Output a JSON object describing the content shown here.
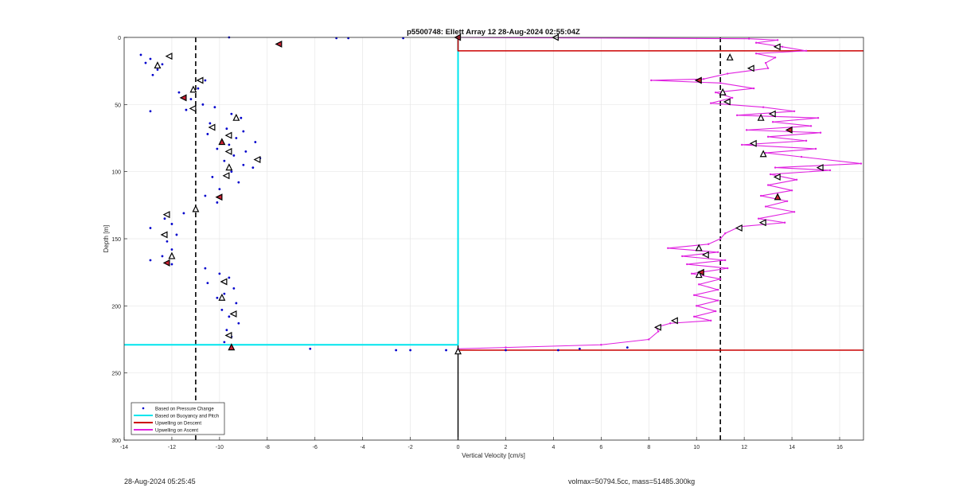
{
  "footer": {
    "timestamp": "28-Aug-2024 05:25:45",
    "mass_info": "volmax=50794.5cc, mass=51485.300kg"
  },
  "chart_data": {
    "type": "scatter",
    "title": "p5500748: Ellett Array 12 28-Aug-2024 02:55:04Z",
    "xlabel": "Vertical Velocity [cm/s]",
    "ylabel": "Depth [m]",
    "xlim": [
      -14,
      17
    ],
    "ylim": [
      0,
      300
    ],
    "y_reversed": true,
    "grid": true,
    "x_ticks": [
      -14,
      -12,
      -10,
      -8,
      -6,
      -4,
      -2,
      0,
      2,
      4,
      6,
      8,
      10,
      12,
      14,
      16
    ],
    "y_ticks": [
      0,
      50,
      100,
      150,
      200,
      250,
      300
    ],
    "reference_lines_x": [
      -11,
      11
    ],
    "legend_position": "bottom-left",
    "colors": {
      "pressure": "#0000cc",
      "buoyancy": "#00e5ee",
      "descent": "#cc0000",
      "ascent": "#e020e0",
      "reference": "#000000",
      "axis": "#262626",
      "grid": "#e6e6e6"
    },
    "series": [
      {
        "name": "Based on Pressure Change",
        "kind": "scatter",
        "points": [
          [
            -9.6,
            0
          ],
          [
            -7.5,
            5
          ],
          [
            -5.1,
            0.5
          ],
          [
            -4.6,
            0.5
          ],
          [
            -2.3,
            0.5
          ],
          [
            -13.3,
            13
          ],
          [
            -12.9,
            16
          ],
          [
            -12.4,
            20
          ],
          [
            -12.1,
            14
          ],
          [
            -12.6,
            24
          ],
          [
            -13.1,
            19
          ],
          [
            -12.8,
            28
          ],
          [
            -10.6,
            32
          ],
          [
            -10.9,
            38
          ],
          [
            -11.7,
            41
          ],
          [
            -11.2,
            46
          ],
          [
            -10.7,
            50
          ],
          [
            -11.4,
            54
          ],
          [
            -12.9,
            55
          ],
          [
            -10.2,
            52
          ],
          [
            -9.5,
            57
          ],
          [
            -9.1,
            60
          ],
          [
            -10.4,
            64
          ],
          [
            -9.7,
            68
          ],
          [
            -9.0,
            70
          ],
          [
            -10.5,
            72
          ],
          [
            -9.3,
            75
          ],
          [
            -8.5,
            78
          ],
          [
            -9.6,
            80
          ],
          [
            -10.1,
            83
          ],
          [
            -8.9,
            85
          ],
          [
            -9.4,
            88
          ],
          [
            -8.3,
            90
          ],
          [
            -9.8,
            92
          ],
          [
            -9.0,
            95
          ],
          [
            -8.6,
            97
          ],
          [
            -9.5,
            100
          ],
          [
            -10.3,
            104
          ],
          [
            -9.2,
            108
          ],
          [
            -10.0,
            113
          ],
          [
            -10.6,
            118
          ],
          [
            -10.1,
            123
          ],
          [
            -11.0,
            127
          ],
          [
            -11.5,
            131
          ],
          [
            -12.3,
            135
          ],
          [
            -12.0,
            139
          ],
          [
            -12.9,
            142
          ],
          [
            -11.8,
            147
          ],
          [
            -12.2,
            152
          ],
          [
            -12.0,
            158
          ],
          [
            -12.4,
            163
          ],
          [
            -12.9,
            166
          ],
          [
            -12.0,
            169
          ],
          [
            -10.6,
            172
          ],
          [
            -10.0,
            176
          ],
          [
            -9.6,
            179
          ],
          [
            -10.5,
            183
          ],
          [
            -9.4,
            187
          ],
          [
            -9.8,
            191
          ],
          [
            -10.1,
            194
          ],
          [
            -9.3,
            198
          ],
          [
            -9.9,
            203
          ],
          [
            -9.6,
            208
          ],
          [
            -9.2,
            213
          ],
          [
            -9.7,
            218
          ],
          [
            -9.5,
            223
          ],
          [
            -9.8,
            227
          ],
          [
            -6.2,
            232
          ],
          [
            -2.6,
            233
          ],
          [
            -2.0,
            233
          ],
          [
            -0.5,
            233
          ],
          [
            2.0,
            233
          ],
          [
            4.2,
            233
          ],
          [
            5.1,
            232
          ],
          [
            7.1,
            231
          ]
        ]
      },
      {
        "name": "Based on Buoyancy and Pitch",
        "kind": "line",
        "points": [
          [
            0,
            0
          ],
          [
            0,
            229
          ],
          [
            -14,
            229
          ]
        ]
      },
      {
        "name": "Upwelling on Descent",
        "kind": "line",
        "points": [
          [
            0,
            0
          ],
          [
            0,
            10
          ],
          [
            17,
            10
          ]
        ]
      },
      {
        "name": "Upwelling on Descent (deep)",
        "kind": "line",
        "points": [
          [
            0,
            233
          ],
          [
            17,
            233
          ]
        ]
      },
      {
        "name": "Upwelling on Ascent",
        "kind": "line",
        "points": [
          [
            0,
            0
          ],
          [
            12.2,
            1
          ],
          [
            13.4,
            2
          ],
          [
            12.5,
            4
          ],
          [
            13.6,
            7
          ],
          [
            14.6,
            10
          ],
          [
            12.5,
            12
          ],
          [
            13.3,
            15
          ],
          [
            12.9,
            19
          ],
          [
            13.0,
            23
          ],
          [
            11.3,
            27
          ],
          [
            10.3,
            31
          ],
          [
            8.1,
            32
          ],
          [
            11.0,
            34
          ],
          [
            12.4,
            38
          ],
          [
            10.8,
            41
          ],
          [
            11.5,
            45
          ],
          [
            10.6,
            49
          ],
          [
            12.8,
            52
          ],
          [
            14.1,
            55
          ],
          [
            11.7,
            58
          ],
          [
            15.1,
            60
          ],
          [
            13.2,
            63
          ],
          [
            14.8,
            66
          ],
          [
            12.1,
            69
          ],
          [
            15.2,
            71
          ],
          [
            13.0,
            74
          ],
          [
            14.6,
            77
          ],
          [
            11.9,
            80
          ],
          [
            15.0,
            83
          ],
          [
            12.9,
            86
          ],
          [
            14.4,
            89
          ],
          [
            16.9,
            94
          ],
          [
            13.3,
            97
          ],
          [
            15.6,
            99
          ],
          [
            13.1,
            102
          ],
          [
            14.2,
            106
          ],
          [
            13.0,
            110
          ],
          [
            14.0,
            114
          ],
          [
            12.7,
            118
          ],
          [
            13.8,
            122
          ],
          [
            12.9,
            126
          ],
          [
            14.1,
            130
          ],
          [
            12.6,
            135
          ],
          [
            13.7,
            138
          ],
          [
            11.8,
            141
          ],
          [
            11.2,
            146
          ],
          [
            11.0,
            150
          ],
          [
            10.5,
            154
          ],
          [
            8.8,
            157
          ],
          [
            10.9,
            160
          ],
          [
            9.4,
            163
          ],
          [
            11.2,
            166
          ],
          [
            9.6,
            169
          ],
          [
            11.3,
            172
          ],
          [
            9.8,
            176
          ],
          [
            11.0,
            180
          ],
          [
            10.1,
            184
          ],
          [
            10.9,
            188
          ],
          [
            9.9,
            192
          ],
          [
            10.9,
            196
          ],
          [
            10.0,
            200
          ],
          [
            10.8,
            204
          ],
          [
            9.9,
            208
          ],
          [
            10.6,
            211
          ],
          [
            8.9,
            213
          ],
          [
            8.3,
            216
          ],
          [
            8.4,
            219
          ],
          [
            8.0,
            225
          ],
          [
            6.0,
            229
          ],
          [
            2.0,
            231
          ],
          [
            0,
            232
          ]
        ]
      }
    ],
    "marker_series": [
      {
        "kind": "triangle-marker",
        "points": [
          [
            -7.5,
            5
          ],
          [
            -12.6,
            21
          ],
          [
            -12.1,
            14
          ],
          [
            -10.8,
            32
          ],
          [
            -11.1,
            39
          ],
          [
            -11.5,
            45
          ],
          [
            -11.1,
            53
          ],
          [
            -9.3,
            60
          ],
          [
            -10.3,
            67
          ],
          [
            -9.6,
            73
          ],
          [
            -9.9,
            78
          ],
          [
            -9.6,
            85
          ],
          [
            -8.4,
            91
          ],
          [
            -9.6,
            97
          ],
          [
            -9.7,
            103
          ],
          [
            -10.0,
            119
          ],
          [
            -11.0,
            128
          ],
          [
            -12.2,
            132
          ],
          [
            -12.3,
            147
          ],
          [
            -12.0,
            163
          ],
          [
            -12.2,
            168
          ],
          [
            -9.8,
            182
          ],
          [
            -9.9,
            194
          ],
          [
            -9.4,
            206
          ],
          [
            -9.6,
            222
          ],
          [
            -9.5,
            231
          ],
          [
            4.1,
            0
          ],
          [
            13.4,
            7
          ],
          [
            11.4,
            15
          ],
          [
            12.3,
            23
          ],
          [
            10.1,
            32
          ],
          [
            11.1,
            41
          ],
          [
            11.3,
            48
          ],
          [
            13.2,
            57
          ],
          [
            12.7,
            60
          ],
          [
            13.9,
            69
          ],
          [
            12.4,
            79
          ],
          [
            12.8,
            87
          ],
          [
            15.2,
            97
          ],
          [
            13.4,
            104
          ],
          [
            13.4,
            119
          ],
          [
            12.8,
            138
          ],
          [
            11.8,
            142
          ],
          [
            10.1,
            157
          ],
          [
            10.4,
            162
          ],
          [
            10.2,
            175
          ],
          [
            10.1,
            177
          ],
          [
            9.1,
            211
          ],
          [
            8.4,
            216
          ],
          [
            0,
            234
          ],
          [
            0,
            0
          ]
        ]
      }
    ]
  }
}
